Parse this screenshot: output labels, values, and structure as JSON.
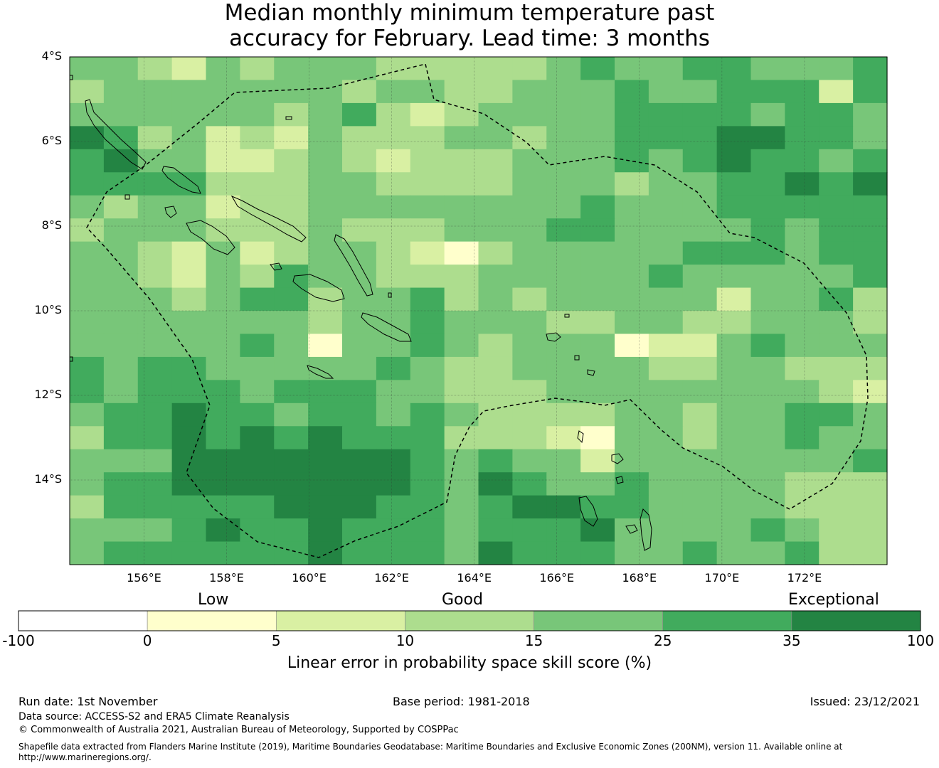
{
  "title": {
    "line1": "Median monthly minimum temperature past",
    "line2": "accuracy for February. Lead time: 3 months"
  },
  "map": {
    "lat_labels": [
      "4°S",
      "6°S",
      "8°S",
      "10°S",
      "12°S",
      "14°S"
    ],
    "lon_labels": [
      "156°E",
      "158°E",
      "160°E",
      "162°E",
      "164°E",
      "166°E",
      "168°E",
      "170°E",
      "172°E"
    ],
    "extent": {
      "lon_min": 154.2,
      "lon_max": 174.0,
      "lat_min": -16.0,
      "lat_max": -4.0
    },
    "cell_size_deg": 0.8333,
    "grid": [
      [
        3,
        3,
        2,
        1,
        3,
        2,
        3,
        3,
        3,
        2,
        2,
        2,
        2,
        2,
        3,
        4,
        3,
        3,
        4,
        4,
        3,
        3,
        3,
        4
      ],
      [
        2,
        3,
        3,
        3,
        3,
        3,
        3,
        3,
        2,
        3,
        3,
        2,
        2,
        3,
        3,
        3,
        4,
        3,
        3,
        4,
        4,
        4,
        1,
        4
      ],
      [
        3,
        3,
        3,
        3,
        3,
        3,
        2,
        3,
        4,
        2,
        1,
        2,
        3,
        3,
        3,
        3,
        4,
        4,
        4,
        4,
        3,
        4,
        4,
        3
      ],
      [
        5,
        4,
        2,
        3,
        1,
        2,
        1,
        3,
        2,
        2,
        2,
        3,
        3,
        2,
        3,
        3,
        4,
        4,
        4,
        5,
        5,
        4,
        4,
        3
      ],
      [
        4,
        5,
        3,
        3,
        1,
        1,
        2,
        3,
        2,
        1,
        2,
        2,
        2,
        3,
        3,
        3,
        4,
        3,
        4,
        5,
        4,
        4,
        3,
        4
      ],
      [
        4,
        4,
        4,
        4,
        2,
        2,
        2,
        3,
        3,
        2,
        2,
        2,
        2,
        3,
        3,
        3,
        2,
        3,
        3,
        4,
        4,
        5,
        4,
        5
      ],
      [
        3,
        2,
        3,
        3,
        1,
        2,
        2,
        3,
        3,
        3,
        3,
        3,
        3,
        3,
        3,
        4,
        3,
        3,
        3,
        4,
        4,
        4,
        4,
        4
      ],
      [
        2,
        3,
        3,
        3,
        2,
        2,
        2,
        3,
        2,
        2,
        2,
        3,
        3,
        3,
        4,
        4,
        3,
        3,
        3,
        3,
        4,
        3,
        4,
        4
      ],
      [
        3,
        3,
        2,
        1,
        3,
        1,
        2,
        3,
        3,
        2,
        1,
        0,
        2,
        3,
        3,
        3,
        3,
        3,
        4,
        4,
        4,
        3,
        4,
        4
      ],
      [
        3,
        3,
        2,
        1,
        3,
        2,
        4,
        3,
        3,
        2,
        2,
        2,
        3,
        3,
        3,
        3,
        3,
        4,
        3,
        3,
        3,
        3,
        3,
        4
      ],
      [
        3,
        3,
        3,
        2,
        3,
        4,
        4,
        2,
        3,
        3,
        4,
        2,
        3,
        2,
        3,
        3,
        3,
        3,
        3,
        1,
        3,
        3,
        4,
        2
      ],
      [
        3,
        3,
        3,
        3,
        3,
        3,
        3,
        2,
        3,
        3,
        4,
        3,
        3,
        3,
        2,
        2,
        3,
        3,
        2,
        2,
        3,
        3,
        3,
        2
      ],
      [
        3,
        3,
        3,
        3,
        3,
        4,
        3,
        0,
        3,
        3,
        4,
        3,
        2,
        3,
        3,
        3,
        0,
        1,
        1,
        3,
        4,
        3,
        3,
        3
      ],
      [
        4,
        3,
        4,
        4,
        3,
        3,
        3,
        3,
        3,
        4,
        3,
        2,
        2,
        3,
        3,
        3,
        3,
        2,
        2,
        3,
        3,
        2,
        2,
        2
      ],
      [
        4,
        3,
        4,
        4,
        4,
        3,
        4,
        4,
        4,
        3,
        3,
        2,
        2,
        2,
        3,
        3,
        3,
        3,
        3,
        3,
        3,
        3,
        2,
        1
      ],
      [
        3,
        4,
        4,
        5,
        4,
        4,
        3,
        4,
        4,
        3,
        4,
        3,
        2,
        2,
        2,
        2,
        3,
        3,
        2,
        3,
        3,
        4,
        4,
        3
      ],
      [
        2,
        4,
        4,
        5,
        4,
        5,
        4,
        5,
        4,
        4,
        4,
        2,
        2,
        2,
        1,
        0,
        3,
        3,
        2,
        3,
        3,
        4,
        3,
        3
      ],
      [
        3,
        3,
        3,
        5,
        5,
        5,
        5,
        5,
        5,
        5,
        4,
        3,
        4,
        3,
        3,
        1,
        3,
        3,
        3,
        3,
        3,
        3,
        3,
        4
      ],
      [
        3,
        4,
        4,
        5,
        5,
        5,
        5,
        5,
        5,
        5,
        4,
        3,
        5,
        4,
        3,
        3,
        4,
        3,
        3,
        3,
        3,
        2,
        2,
        2
      ],
      [
        2,
        4,
        4,
        4,
        4,
        4,
        5,
        5,
        5,
        4,
        4,
        3,
        4,
        5,
        5,
        4,
        4,
        3,
        3,
        3,
        3,
        2,
        2,
        2
      ],
      [
        3,
        3,
        3,
        4,
        5,
        4,
        4,
        5,
        4,
        4,
        4,
        3,
        4,
        4,
        4,
        5,
        3,
        3,
        3,
        3,
        4,
        3,
        2,
        2
      ],
      [
        3,
        4,
        4,
        4,
        4,
        4,
        4,
        5,
        4,
        4,
        4,
        3,
        5,
        4,
        4,
        4,
        3,
        3,
        4,
        3,
        3,
        4,
        2,
        2
      ]
    ]
  },
  "colorbar": {
    "category_labels": [
      "Low",
      "Good",
      "Exceptional"
    ],
    "ticks": [
      "-100",
      "0",
      "5",
      "10",
      "15",
      "25",
      "35",
      "100"
    ],
    "colors": [
      "#ffffff",
      "#ffffcc",
      "#d9f0a3",
      "#addd8e",
      "#78c679",
      "#41ab5d",
      "#238443"
    ],
    "title": "Linear error in probability space skill score (%)"
  },
  "footer": {
    "run_date": "Run date: 1st November",
    "base_period": "Base period: 1981-2018",
    "issued": "Issued: 23/12/2021",
    "data_source": "Data source: ACCESS-S2 and ERA5 Climate Reanalysis",
    "copyright": "© Commonwealth of Australia 2021, Australian Bureau of Meteorology, Supported by COSPPac",
    "shapefile_line1": "Shapefile data extracted from Flanders Marine Institute (2019), Maritime Boundaries Geodatabase: Maritime Boundaries and Exclusive Economic Zones (200NM), version 11. Available online at",
    "shapefile_line2": "http://www.marineregions.org/."
  }
}
